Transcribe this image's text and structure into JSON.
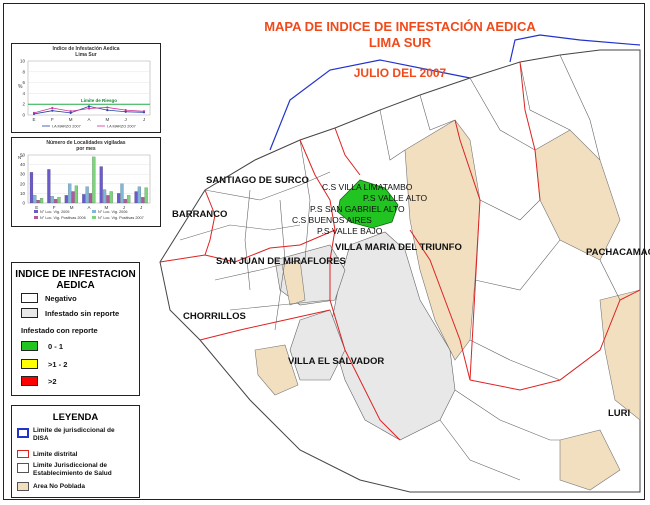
{
  "title": {
    "line1": "MAPA DE INDICE DE INFESTACIÓN AEDICA",
    "line2": "LIMA SUR",
    "line3": "JULIO DEL 2007"
  },
  "districts": {
    "santiago_de_surco": "SANTIAGO DE SURCO",
    "barranco": "BARRANCO",
    "san_juan": "SAN JUAN DE MIRAFLORES",
    "chorrillos": "CHORRILLOS",
    "villa_el_salvador": "VILLA EL SALVADOR",
    "villa_maria": "VILLA MARIA DEL TRIUNFO",
    "pachacamac": "PACHACAMAC",
    "lurin": "LURI"
  },
  "health_posts": {
    "limatambo": "C.S VILLA  LIMATAMBO",
    "valle_alto": "P.S VALLE ALTO",
    "san_gabriel": "P.S SAN GABRIEL ALTO",
    "buenos_aires": "C.S BUENOS AIRES",
    "valle_bajo": "P.S VALLE BAJO"
  },
  "infestation_legend": {
    "title_line1": "INDICE DE INFESTACION",
    "title_line2": "AEDICA",
    "negativo": "Negativo",
    "sin_reporte": "Infestado sin reporte",
    "con_reporte": "Infestado con reporte",
    "range1": "0 - 1",
    "range2": ">1 - 2",
    "range3": ">2",
    "colors": {
      "negativo": "#ffffff",
      "sin_reporte": "#e8e8e8",
      "range1": "#22c422",
      "range2": "#ffff00",
      "range3": "#ff0000"
    }
  },
  "leyenda": {
    "title": "LEYENDA",
    "disa_line1": "Limite de jurisdiccional de",
    "disa_line2": "DISA",
    "distrital": "Limite distrital",
    "estab_line1": "Limite Jurisdiccional de",
    "estab_line2": "Establecimiento de Salud",
    "no_poblada": "Area No Poblada",
    "colors": {
      "disa": "#2233cc",
      "distrital": "#dd2222",
      "no_poblada": "#f2dfc0"
    }
  },
  "chart_data": [
    {
      "type": "line",
      "title": "Indice de Infestación Aedica",
      "subtitle": "Lima Sur",
      "ylabel": "%",
      "ylim": [
        0,
        10
      ],
      "yticks": [
        "10",
        "8",
        "6",
        "4",
        "2",
        "0"
      ],
      "categories": [
        "E",
        "F",
        "M",
        "A",
        "M",
        "J",
        "J"
      ],
      "threshold": {
        "label": "Limite de Riesgo",
        "value": 2
      },
      "series": [
        {
          "name": "I.A MARZO 2007",
          "color": "#2244aa",
          "values": [
            0.2,
            0.8,
            0.4,
            1.6,
            0.9,
            0.6,
            0.5
          ]
        },
        {
          "name": "I.A MARZO 2007",
          "color": "#cc3399",
          "values": [
            0.4,
            1.3,
            0.7,
            1.2,
            1.4,
            0.9,
            0.7
          ]
        }
      ]
    },
    {
      "type": "bar",
      "title": "Número de Localidades vigiladas",
      "subtitle": "por mes",
      "ylabel": "N°",
      "ylim": [
        0,
        50
      ],
      "yticks": [
        "50",
        "40",
        "30",
        "20",
        "10",
        "0"
      ],
      "categories": [
        "E",
        "F",
        "M",
        "A",
        "M",
        "J",
        "J"
      ],
      "series": [
        {
          "name": "N° Loc. Vig. 2005",
          "color": "#6a5acd",
          "values": [
            32,
            35,
            8,
            9,
            38,
            10,
            12
          ]
        },
        {
          "name": "N° Loc. Vig. 2006",
          "color": "#7fb8d8",
          "values": [
            8,
            7,
            20,
            17,
            14,
            20,
            17
          ]
        },
        {
          "name": "N° Loc. Vig. Positivas 2006",
          "color": "#b05a9e",
          "values": [
            3,
            4,
            12,
            10,
            8,
            4,
            6
          ]
        },
        {
          "name": "N° Loc. Vig. Positivas 2007",
          "color": "#7bd67b",
          "values": [
            5,
            6,
            18,
            48,
            12,
            8,
            16
          ]
        }
      ]
    }
  ]
}
